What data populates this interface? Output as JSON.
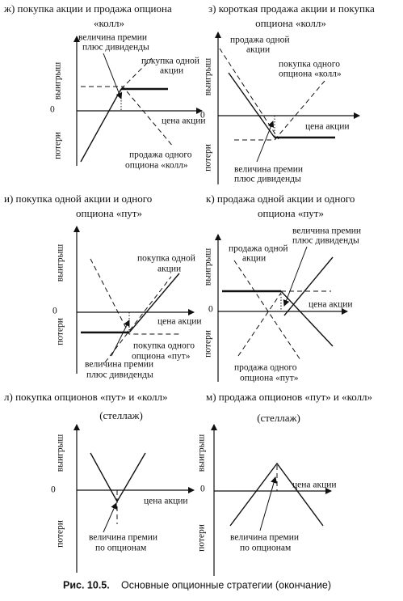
{
  "panels": [
    {
      "title": [
        "ж) покупка акции и продажа опциона",
        "«колл»"
      ],
      "gain": "выигрыш",
      "loss": "потери",
      "zero": "0",
      "x_label": "цена акции",
      "notes": [
        [
          "величина премии",
          "плюс дивиденды"
        ],
        [
          "покупка одной",
          "акции"
        ],
        [
          "продажа одного",
          "опциона «колл»"
        ]
      ]
    },
    {
      "title": [
        "з) короткая продажа акции и покупка",
        "опциона «колл»"
      ],
      "gain": "выигрыш",
      "loss": "потери",
      "zero": "0",
      "x_label": "цена акции",
      "notes": [
        [
          "продажа одной",
          "акции"
        ],
        [
          "покупка одного",
          "опциона «колл»"
        ],
        [
          "величина премии",
          "плюс дивиденды"
        ]
      ]
    },
    {
      "title": [
        "и) покупка одной акции и одного",
        "опциона «пут»"
      ],
      "gain": "выигрыш",
      "loss": "потери",
      "zero": "0",
      "x_label": "цена акции",
      "notes": [
        [
          "покупка одной",
          "акции"
        ],
        [
          "покупка одного",
          "опциона «пут»"
        ],
        [
          "величина премии",
          "плюс дивиденды"
        ]
      ]
    },
    {
      "title": [
        "к) продажа одной акции и одного",
        "опциона «пут»"
      ],
      "gain": "выигрыш",
      "loss": "потери",
      "zero": "0",
      "x_label": "цена акции",
      "notes": [
        [
          "величина премии",
          "плюс дивиденды"
        ],
        [
          "продажа одной",
          "акции"
        ],
        [
          "продажа одного",
          "опциона «пут»"
        ]
      ]
    },
    {
      "title": [
        "л) покупка опционов «пут» и «колл»",
        "(стеллаж)"
      ],
      "gain": "выигрыш",
      "loss": "потери",
      "zero": "0",
      "x_label": "цена акции",
      "notes": [
        [
          "величина премии",
          "по опционам"
        ]
      ]
    },
    {
      "title": [
        "м) продажа опционов «пут» и «колл»",
        "(стеллаж)"
      ],
      "gain": "выигрыш",
      "loss": "потери",
      "zero": "0",
      "x_label": "цена акции",
      "notes": [
        [
          "величина премии",
          "по опционам"
        ]
      ]
    }
  ],
  "caption": {
    "number": "Рис. 10.5.",
    "text": "Основные опционные стратегии (окончание)"
  }
}
